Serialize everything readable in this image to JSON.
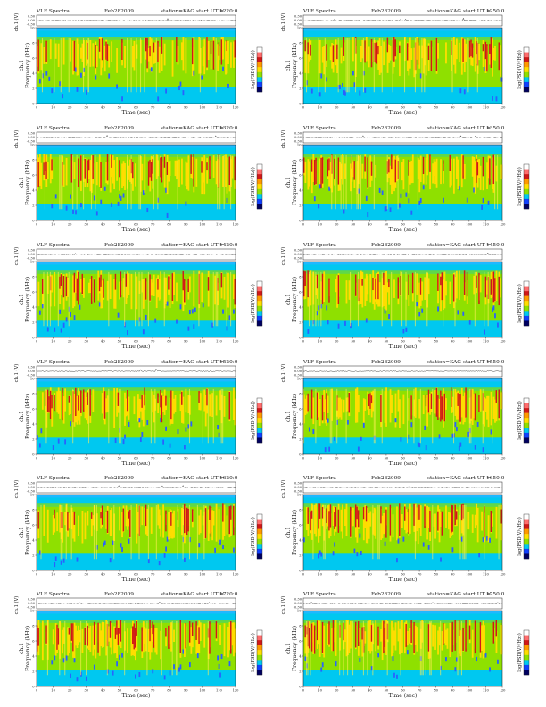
{
  "colors": {
    "background": "#1fb8ff",
    "low": "#00c8f0",
    "mid": "#8fe000",
    "high": "#ffdd00",
    "peak": "#d01818",
    "colorbar": [
      "#ffffff",
      "#ff6d6d",
      "#d01818",
      "#ff9900",
      "#ffdd00",
      "#8fe000",
      "#00c8f0",
      "#1040ff",
      "#000060"
    ]
  },
  "labels": {
    "title": "VLF Spectra",
    "date": "Feb282009",
    "station": "station=KAG",
    "start_prefix": "start  UT  =",
    "ch_label": "ch.1 (V)",
    "freq_label_top": "ch.1",
    "freq_label": "Frequency  (kHz)",
    "time_label": "Time  (sec)",
    "colorbar_label": "log(PSD(V/√Hz))",
    "ch_ticks": [
      "0.30",
      "0.00",
      "-0.30"
    ],
    "freq_ticks": [
      "0",
      "2",
      "4",
      "6",
      "8",
      "10"
    ],
    "time_ticks": [
      "0",
      "10",
      "20",
      "30",
      "40",
      "50",
      "60",
      "70",
      "80",
      "90",
      "100",
      "110",
      "120"
    ]
  },
  "chart_data": [
    {
      "type": "heatmap",
      "title": "VLF Spectra",
      "start_ut": "1220:0",
      "x_range": [
        0,
        120
      ],
      "y_range": [
        0,
        10
      ],
      "xlabel": "Time (sec)",
      "ylabel": "Frequency (kHz)"
    },
    {
      "type": "heatmap",
      "title": "VLF Spectra",
      "start_ut": "1250:0",
      "x_range": [
        0,
        120
      ],
      "y_range": [
        0,
        10
      ],
      "xlabel": "Time (sec)",
      "ylabel": "Frequency (kHz)"
    },
    {
      "type": "heatmap",
      "title": "VLF Spectra",
      "start_ut": "1320:0",
      "x_range": [
        0,
        120
      ],
      "y_range": [
        0,
        10
      ],
      "xlabel": "Time (sec)",
      "ylabel": "Frequency (kHz)"
    },
    {
      "type": "heatmap",
      "title": "VLF Spectra",
      "start_ut": "1350:0",
      "x_range": [
        0,
        120
      ],
      "y_range": [
        0,
        10
      ],
      "xlabel": "Time (sec)",
      "ylabel": "Frequency (kHz)"
    },
    {
      "type": "heatmap",
      "title": "VLF Spectra",
      "start_ut": "1420:0",
      "x_range": [
        0,
        120
      ],
      "y_range": [
        0,
        10
      ],
      "xlabel": "Time (sec)",
      "ylabel": "Frequency (kHz)"
    },
    {
      "type": "heatmap",
      "title": "VLF Spectra",
      "start_ut": "1450:0",
      "x_range": [
        0,
        120
      ],
      "y_range": [
        0,
        10
      ],
      "xlabel": "Time (sec)",
      "ylabel": "Frequency (kHz)"
    },
    {
      "type": "heatmap",
      "title": "VLF Spectra",
      "start_ut": "1520:0",
      "x_range": [
        0,
        120
      ],
      "y_range": [
        0,
        10
      ],
      "xlabel": "Time (sec)",
      "ylabel": "Frequency (kHz)"
    },
    {
      "type": "heatmap",
      "title": "VLF Spectra",
      "start_ut": "1550:0",
      "x_range": [
        0,
        120
      ],
      "y_range": [
        0,
        10
      ],
      "xlabel": "Time (sec)",
      "ylabel": "Frequency (kHz)"
    },
    {
      "type": "heatmap",
      "title": "VLF Spectra",
      "start_ut": "1620:0",
      "x_range": [
        0,
        120
      ],
      "y_range": [
        0,
        10
      ],
      "xlabel": "Time (sec)",
      "ylabel": "Frequency (kHz)"
    },
    {
      "type": "heatmap",
      "title": "VLF Spectra",
      "start_ut": "1650:0",
      "x_range": [
        0,
        120
      ],
      "y_range": [
        0,
        10
      ],
      "xlabel": "Time (sec)",
      "ylabel": "Frequency (kHz)"
    },
    {
      "type": "heatmap",
      "title": "VLF Spectra",
      "start_ut": "1720:0",
      "x_range": [
        0,
        120
      ],
      "y_range": [
        0,
        10
      ],
      "xlabel": "Time (sec)",
      "ylabel": "Frequency (kHz)"
    },
    {
      "type": "heatmap",
      "title": "VLF Spectra",
      "start_ut": "1750:0",
      "x_range": [
        0,
        120
      ],
      "y_range": [
        0,
        10
      ],
      "xlabel": "Time (sec)",
      "ylabel": "Frequency (kHz)"
    }
  ]
}
